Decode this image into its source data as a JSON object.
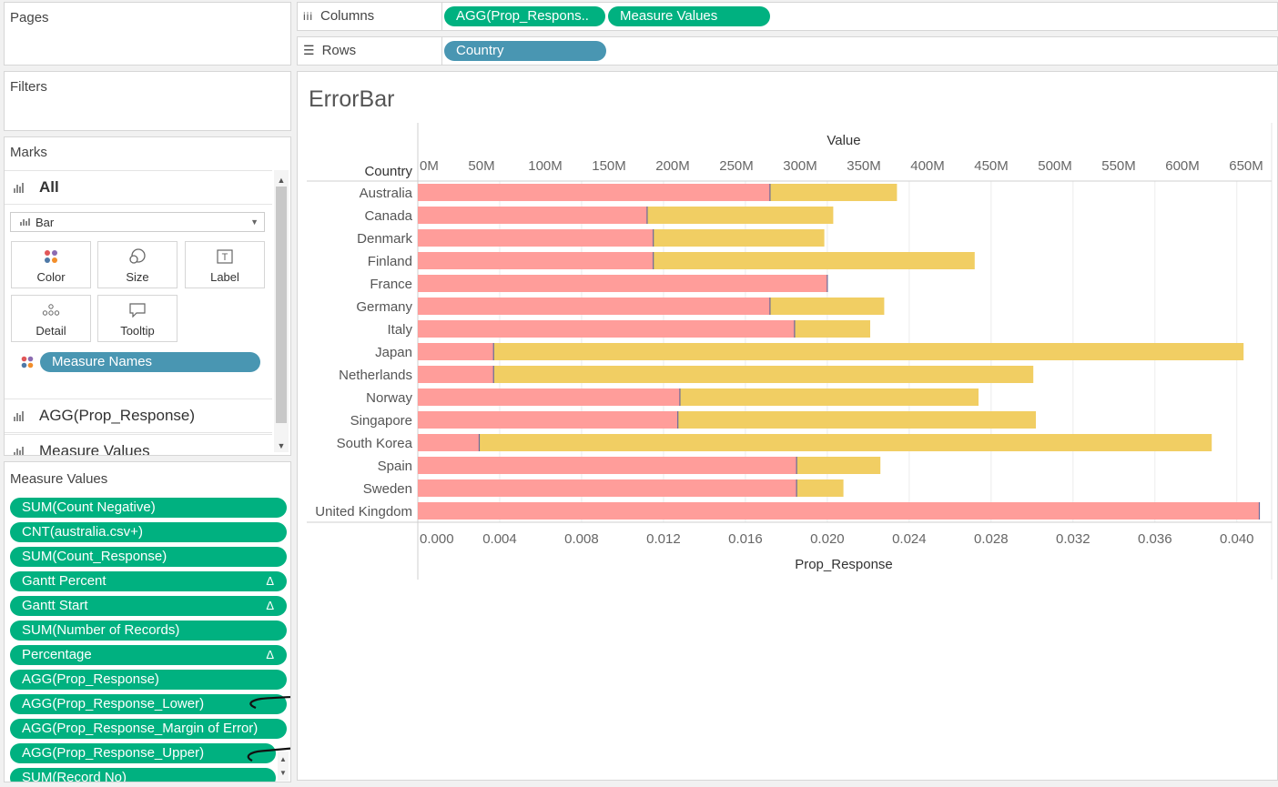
{
  "sidebar": {
    "pages_label": "Pages",
    "filters_label": "Filters",
    "marks_label": "Marks",
    "all_label": "All",
    "mark_type": "Bar",
    "buttons": {
      "color": "Color",
      "size": "Size",
      "label": "Label",
      "detail": "Detail",
      "tooltip": "Tooltip"
    },
    "measure_names_pill": "Measure Names",
    "agg_card": "AGG(Prop_Response)",
    "measure_values_card": "Measure Values"
  },
  "measure_values": {
    "title": "Measure Values",
    "pills": [
      {
        "label": "SUM(Count Negative)",
        "delta": ""
      },
      {
        "label": "CNT(australia.csv+)",
        "delta": ""
      },
      {
        "label": "SUM(Count_Response)",
        "delta": ""
      },
      {
        "label": "Gantt Percent",
        "delta": "Δ"
      },
      {
        "label": "Gantt Start",
        "delta": "Δ"
      },
      {
        "label": "SUM(Number of Records)",
        "delta": ""
      },
      {
        "label": "Percentage",
        "delta": "Δ"
      },
      {
        "label": "AGG(Prop_Response)",
        "delta": ""
      },
      {
        "label": "AGG(Prop_Response_Lower)",
        "delta": ""
      },
      {
        "label": "AGG(Prop_Response_Margin of Error)",
        "delta": ""
      },
      {
        "label": "AGG(Prop_Response_Upper)",
        "delta": ""
      },
      {
        "label": "SUM(Record No)",
        "delta": ""
      }
    ]
  },
  "shelves": {
    "columns_label": "Columns",
    "rows_label": "Rows",
    "columns_pills": [
      "AGG(Prop_Respons..",
      "Measure Values"
    ],
    "rows_pills": [
      "Country"
    ]
  },
  "view": {
    "title": "ErrorBar"
  },
  "colors": {
    "pink": "#ff9d9a",
    "yellow": "#f1ce63",
    "green": "#00b180",
    "blue": "#4996b2"
  },
  "chart_data": {
    "type": "bar",
    "row_header": "Country",
    "top_axis": {
      "title": "Value",
      "range": [
        0,
        670000000
      ],
      "ticks": [
        0,
        50000000,
        100000000,
        150000000,
        200000000,
        250000000,
        300000000,
        350000000,
        400000000,
        450000000,
        500000000,
        550000000,
        600000000,
        650000000
      ],
      "tick_labels": [
        "0M",
        "50M",
        "100M",
        "150M",
        "200M",
        "250M",
        "300M",
        "350M",
        "400M",
        "450M",
        "500M",
        "550M",
        "600M",
        "650M"
      ]
    },
    "bottom_axis": {
      "title": "Prop_Response",
      "range": [
        0,
        0.0417
      ],
      "ticks": [
        0,
        0.004,
        0.008,
        0.012,
        0.016,
        0.02,
        0.024,
        0.028,
        0.032,
        0.036,
        0.04
      ],
      "tick_labels": [
        "0.000",
        "0.004",
        "0.008",
        "0.012",
        "0.016",
        "0.020",
        "0.024",
        "0.028",
        "0.032",
        "0.036",
        "0.040"
      ]
    },
    "categories": [
      "Australia",
      "Canada",
      "Denmark",
      "Finland",
      "France",
      "Germany",
      "Italy",
      "Japan",
      "Netherlands",
      "Norway",
      "Singapore",
      "South Korea",
      "Spain",
      "Sweden",
      "United Kingdom"
    ],
    "series": [
      {
        "axis": "bottom",
        "color": "#ff9d9a",
        "values": [
          0.0172,
          0.0112,
          0.0115,
          0.0115,
          0.02,
          0.0172,
          0.0184,
          0.0037,
          0.0037,
          0.0128,
          0.0127,
          0.003,
          0.0185,
          0.0185,
          0.0411
        ]
      },
      {
        "axis": "top",
        "color": "#f1ce63",
        "values": [
          376000000,
          326000000,
          319000000,
          437000000,
          0,
          366000000,
          355000000,
          648000000,
          483000000,
          440000000,
          485000000,
          623000000,
          363000000,
          334000000,
          0
        ]
      }
    ],
    "grid": "vertical"
  }
}
